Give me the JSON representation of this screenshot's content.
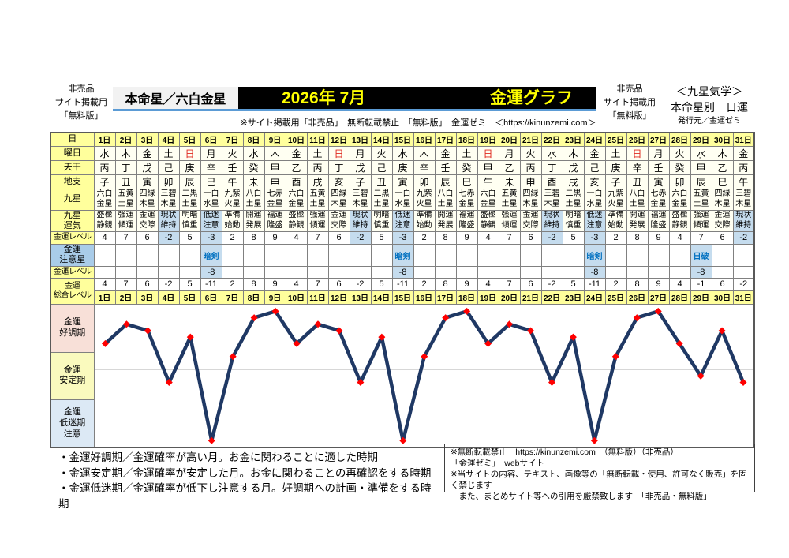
{
  "header": {
    "left_badge": {
      "line1": "非売品",
      "line2": "サイト掲載用",
      "line3": "「無料版」"
    },
    "star_box": "本命星／六白金星",
    "banner": {
      "period": "2026年 7月",
      "title": "金運グラフ"
    },
    "subtitle": "※サイト掲載用「非売品」　無断転載禁止　「無料版」　金運ゼミ　＜https://kinunzemi.com＞",
    "right_badge": {
      "line1": "非売品",
      "line2": "サイト掲載用",
      "line3": "「無料版」"
    },
    "right_info": {
      "line1": "＜九星気学＞",
      "line2": "本命星別　日運",
      "line3": "発行元／金運ゼミ"
    }
  },
  "table": {
    "row_labels": [
      "日",
      "曜日",
      "天干",
      "地支",
      "九星",
      "九星\n運気",
      "金運レベル",
      "金運\n注意星",
      "金運レベル",
      "金運\n総合レベル"
    ],
    "days": [
      "1日",
      "2日",
      "3日",
      "4日",
      "5日",
      "6日",
      "7日",
      "8日",
      "9日",
      "10日",
      "11日",
      "12日",
      "13日",
      "14日",
      "15日",
      "16日",
      "17日",
      "18日",
      "19日",
      "20日",
      "21日",
      "22日",
      "23日",
      "24日",
      "25日",
      "26日",
      "27日",
      "28日",
      "29日",
      "30日",
      "31日"
    ],
    "weekdays": [
      "水",
      "木",
      "金",
      "土",
      "日",
      "月",
      "火",
      "水",
      "木",
      "金",
      "土",
      "日",
      "月",
      "火",
      "水",
      "木",
      "金",
      "土",
      "日",
      "月",
      "火",
      "水",
      "木",
      "金",
      "土",
      "日",
      "月",
      "火",
      "水",
      "木",
      "金"
    ],
    "sundays": [
      5,
      12,
      19,
      26
    ],
    "tenkan": [
      "丙",
      "丁",
      "戊",
      "己",
      "庚",
      "辛",
      "壬",
      "癸",
      "甲",
      "乙",
      "丙",
      "丁",
      "戊",
      "己",
      "庚",
      "辛",
      "壬",
      "癸",
      "甲",
      "乙",
      "丙",
      "丁",
      "戊",
      "己",
      "庚",
      "辛",
      "壬",
      "癸",
      "甲",
      "乙",
      "丙"
    ],
    "chishi": [
      "子",
      "丑",
      "寅",
      "卯",
      "辰",
      "巳",
      "午",
      "未",
      "申",
      "酉",
      "戌",
      "亥",
      "子",
      "丑",
      "寅",
      "卯",
      "辰",
      "巳",
      "午",
      "未",
      "申",
      "酉",
      "戌",
      "亥",
      "子",
      "丑",
      "寅",
      "卯",
      "辰",
      "巳",
      "午"
    ],
    "kyusei": [
      "六白金星",
      "五黄土星",
      "四緑木星",
      "三碧木星",
      "二黒土星",
      "一白水星",
      "九紫火星",
      "八白土星",
      "七赤金星",
      "六白金星",
      "五黄土星",
      "四緑木星",
      "三碧木星",
      "二黒土星",
      "一白水星",
      "九紫火星",
      "八白土星",
      "七赤金星",
      "六白金星",
      "五黄土星",
      "四緑木星",
      "三碧木星",
      "二黒土星",
      "一白水星",
      "九紫火星",
      "八白土星",
      "七赤金星",
      "六白金星",
      "五黄土星",
      "四緑木星",
      "三碧木星"
    ],
    "unki": [
      "盛極静観",
      "強運傾運",
      "金運交際",
      "現状維持",
      "明暗慎重",
      "低迷注意",
      "準備始動",
      "開運発展",
      "福運隆盛",
      "盛極静観",
      "強運傾運",
      "金運交際",
      "現状維持",
      "明暗慎重",
      "低迷注意",
      "準備始動",
      "開運発展",
      "福運隆盛",
      "盛極静観",
      "強運傾運",
      "金運交際",
      "現状維持",
      "明暗慎重",
      "低迷注意",
      "準備始動",
      "開運発展",
      "福運隆盛",
      "盛極静観",
      "強運傾運",
      "金運交際",
      "現状維持"
    ],
    "level1": [
      4,
      7,
      6,
      -2,
      5,
      -3,
      2,
      8,
      9,
      4,
      7,
      6,
      -2,
      5,
      -3,
      2,
      8,
      9,
      4,
      7,
      6,
      -2,
      5,
      -3,
      2,
      8,
      9,
      4,
      7,
      6,
      -2
    ],
    "highlight_days": [
      4,
      6,
      13,
      15,
      22,
      24,
      31
    ],
    "caution_star": {
      "6": "暗剣",
      "15": "暗剣",
      "24": "暗剣",
      "29": "日破"
    },
    "level2": {
      "6": "-8",
      "15": "-8",
      "24": "-8",
      "29": "-8"
    },
    "total": [
      4,
      7,
      6,
      -2,
      5,
      -11,
      2,
      8,
      9,
      4,
      7,
      6,
      -2,
      5,
      -11,
      2,
      8,
      9,
      4,
      7,
      6,
      -2,
      5,
      -11,
      2,
      8,
      9,
      4,
      -1,
      6,
      -2
    ]
  },
  "chart_data": {
    "type": "line",
    "title": "金運グラフ",
    "xlabel": "日 (1日〜31日)",
    "ylabel": "金運総合レベル",
    "x": [
      1,
      2,
      3,
      4,
      5,
      6,
      7,
      8,
      9,
      10,
      11,
      12,
      13,
      14,
      15,
      16,
      17,
      18,
      19,
      20,
      21,
      22,
      23,
      24,
      25,
      26,
      27,
      28,
      29,
      30,
      31
    ],
    "values": [
      4,
      7,
      6,
      -2,
      5,
      -11,
      2,
      8,
      9,
      4,
      7,
      6,
      -2,
      5,
      -11,
      2,
      8,
      9,
      4,
      7,
      6,
      -2,
      5,
      -11,
      2,
      8,
      9,
      4,
      -1,
      6,
      -2
    ],
    "ylim": [
      -11,
      9
    ],
    "grid": "single horizontal gridline at y=0",
    "legend": "none",
    "zones": [
      {
        "label": "金運\n好調期",
        "color": "#F8E0D8"
      },
      {
        "label": "金運\n安定期",
        "color": "#FAFABE"
      },
      {
        "label": "金運\n低迷期\n注意",
        "color": "#DCE9F5"
      }
    ]
  },
  "footer": {
    "legend": [
      "・金運好調期／金運確率が高い月。お金に関わることに適した時期",
      "・金運安定期／金運確率が安定した月。お金に関わることの再確認をする時期",
      "・金運低迷期／金運確率が低下し注意する月。好調期への計画・準備をする時期"
    ],
    "copyright": [
      "※無断転載禁止　https://kinunzemi.com　（無料版）（非売品）",
      "「金運ゼミ」　webサイト",
      "※当サイトの内容、テキスト、画像等の「無断転載・使用、許可なく販売」を固く禁じます",
      "　また、まとめサイト等への引用を厳禁致します　「非売品・無料版」"
    ]
  },
  "colors": {
    "header_yellow": "#FFFF9C",
    "body_ivory": "#FFFFF2",
    "highlight_blue": "#C5DCEE",
    "caution_label_blue": "#A9CCE9",
    "caution_text_blue": "#0070C0",
    "sunday_red": "#E02B20",
    "banner_bg": "#000000",
    "banner_text": "#FFFF00",
    "underline_blue": "#5B9BD5",
    "line_navy": "#1F3864",
    "marker_red": "#FF0000",
    "gridline_gray": "#BFBFBF"
  }
}
